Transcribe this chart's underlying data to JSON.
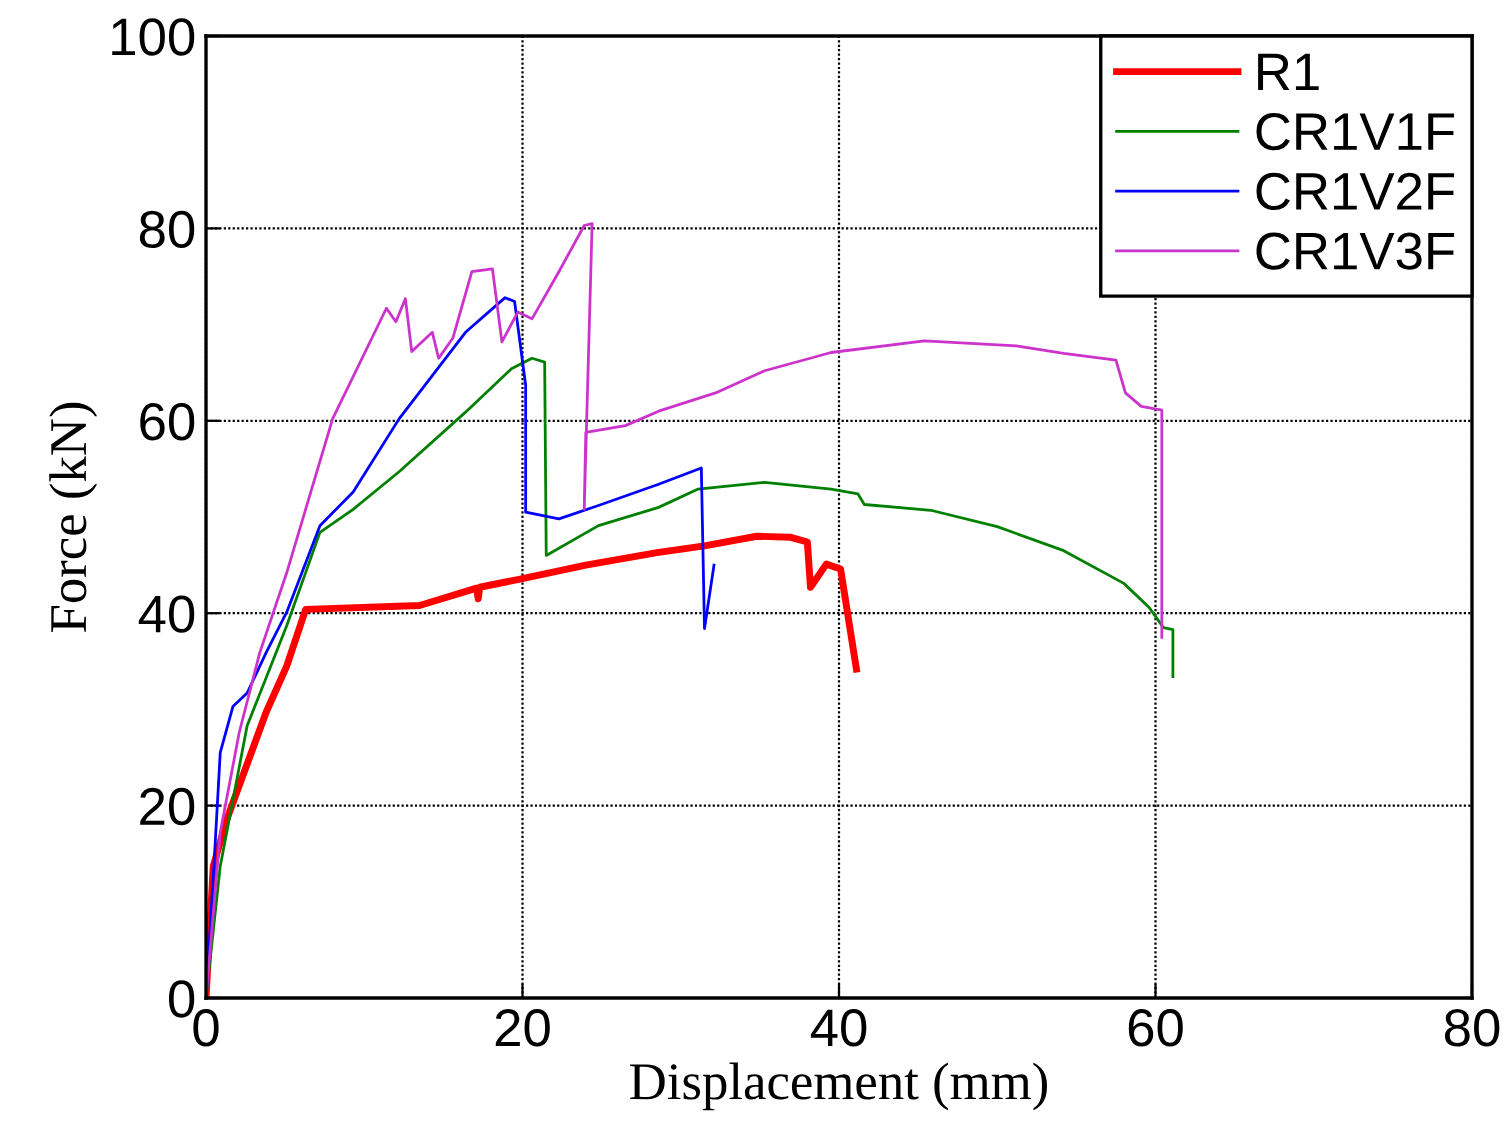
{
  "chart_data": {
    "type": "line",
    "xlabel": "Displacement (mm)",
    "ylabel": "Force (kN)",
    "xlim": [
      0,
      80
    ],
    "ylim": [
      0,
      100
    ],
    "xticks": [
      0,
      20,
      40,
      60,
      80
    ],
    "yticks": [
      0,
      20,
      40,
      60,
      80,
      100
    ],
    "grid": true,
    "legend": "top right",
    "line_style": "solid",
    "marker": "none",
    "series": [
      {
        "name": "R1",
        "color": "#ff0000",
        "x": [
          0,
          0.46,
          1.3,
          3.8,
          5.1,
          6.3,
          13.5,
          17.1,
          17.2,
          17.3,
          19.7,
          24,
          28.5,
          31.5,
          34.8,
          36.9,
          38,
          38.2,
          39.2,
          40.1,
          41.1
        ],
        "values": [
          0,
          13.7,
          18.5,
          29.7,
          34.5,
          40.4,
          40.8,
          42.6,
          41.5,
          42.7,
          43.5,
          45,
          46.3,
          47,
          48,
          47.9,
          47.4,
          42.7,
          45.1,
          44.6,
          34.2
        ]
      },
      {
        "name": "CR1V1F",
        "color": "#008000",
        "x": [
          0,
          0.9,
          2.6,
          5.1,
          7.2,
          9.3,
          12.2,
          16.4,
          19.3,
          20.6,
          21.4,
          21.5,
          24.8,
          28.6,
          31.1,
          35.3,
          39.5,
          41.2,
          41.6,
          45.8,
          50,
          54.2,
          58,
          59.6,
          60.5,
          61.1,
          61.1
        ],
        "values": [
          0,
          13.7,
          28.3,
          38.7,
          48.4,
          50.8,
          54.7,
          60.9,
          65.4,
          66.5,
          66.1,
          46,
          49.1,
          51,
          52.9,
          53.6,
          52.9,
          52.4,
          51.3,
          50.7,
          49,
          46.5,
          43.1,
          40.6,
          38.5,
          38.3,
          33.4
        ]
      },
      {
        "name": "CR1V2F",
        "color": "#0000ff",
        "x": [
          0,
          0.5,
          0.9,
          1.7,
          2.6,
          3.8,
          5.1,
          7.2,
          9.3,
          12.2,
          16.4,
          18.9,
          19.5,
          20.2,
          20.2,
          22.3,
          24.8,
          28.6,
          31.3,
          31.5,
          32.1
        ],
        "values": [
          0,
          13.7,
          25.5,
          30.3,
          31.7,
          35.9,
          40.1,
          49.1,
          52.6,
          60.2,
          69.2,
          72.8,
          72.4,
          63.7,
          50.5,
          49.8,
          51.2,
          53.4,
          55.1,
          38.4,
          45
        ]
      },
      {
        "name": "CR1V3F",
        "color": "#cc33cc",
        "x": [
          0,
          0.9,
          2.1,
          3.4,
          5.1,
          8,
          11.4,
          12,
          12.6,
          13,
          14.3,
          14.7,
          15.6,
          16.8,
          18.1,
          18.7,
          19.7,
          20.6,
          22.3,
          23.9,
          24.4,
          23.9,
          24,
          26.5,
          28.6,
          32.2,
          35.3,
          39.5,
          45.4,
          51.2,
          54.2,
          57.5,
          58.1,
          59.1,
          60.4,
          60.4
        ],
        "values": [
          0,
          17.2,
          27.6,
          35.9,
          44.2,
          60.2,
          71.7,
          70.3,
          72.7,
          67.2,
          69.2,
          66.5,
          68.6,
          75.5,
          75.8,
          68.2,
          71.3,
          70.6,
          75.5,
          80.3,
          80.5,
          50.8,
          58.8,
          59.5,
          61,
          62.9,
          65.2,
          67.1,
          68.3,
          67.8,
          67,
          66.3,
          62.9,
          61.5,
          61.1,
          37.5
        ]
      }
    ]
  }
}
